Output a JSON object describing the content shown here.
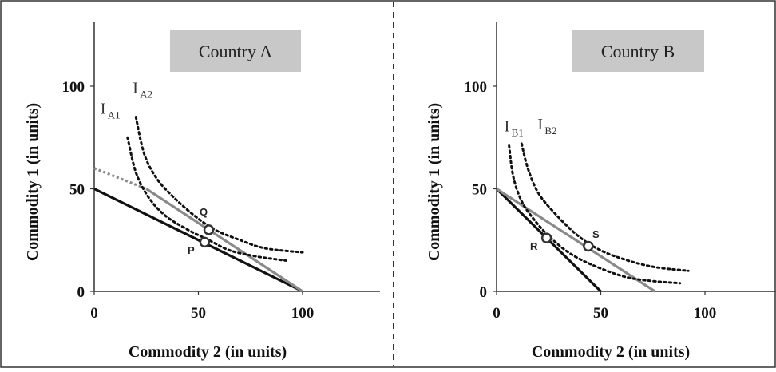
{
  "chart_data": [
    {
      "type": "line",
      "title": "Country A",
      "xlabel": "Commodity 2 (in units)",
      "ylabel": "Commodity 1 (in units)",
      "xlim": [
        0,
        136
      ],
      "ylim": [
        0,
        130
      ],
      "xticks": [
        "0",
        "50",
        "100"
      ],
      "yticks": [
        "0",
        "50",
        "100"
      ],
      "series": [
        {
          "style": "solid-black",
          "points": [
            [
              0,
              50
            ],
            [
              100,
              0
            ]
          ]
        },
        {
          "style": "dotted-gray",
          "points": [
            [
              0,
              60
            ],
            [
              25,
              50
            ]
          ]
        },
        {
          "style": "solid-gray",
          "points": [
            [
              25,
              50
            ],
            [
              100,
              0
            ]
          ]
        }
      ],
      "indifference_curves": [
        {
          "label": "I",
          "subscript": "A1",
          "points": [
            [
              16,
              75
            ],
            [
              20,
              58
            ],
            [
              26,
              46
            ],
            [
              34,
              37
            ],
            [
              45,
              30
            ],
            [
              55,
              25
            ],
            [
              65,
              20
            ],
            [
              78,
              17
            ],
            [
              92,
              15
            ]
          ]
        },
        {
          "label": "I",
          "subscript": "A2",
          "points": [
            [
              20,
              85
            ],
            [
              24,
              67
            ],
            [
              30,
              55
            ],
            [
              38,
              46
            ],
            [
              48,
              37
            ],
            [
              58,
              30
            ],
            [
              70,
              25
            ],
            [
              82,
              21
            ],
            [
              100,
              19
            ]
          ]
        }
      ],
      "points": [
        {
          "label": "Q",
          "x": 55,
          "y": 30
        },
        {
          "label": "P",
          "x": 53,
          "y": 24
        }
      ]
    },
    {
      "type": "line",
      "title": "Country B",
      "xlabel": "Commodity 2 (in units)",
      "ylabel": "Commodity 1 (in units)",
      "xlim": [
        0,
        136
      ],
      "ylim": [
        0,
        130
      ],
      "xticks": [
        "0",
        "50",
        "100"
      ],
      "yticks": [
        "0",
        "50",
        "100"
      ],
      "series": [
        {
          "style": "solid-black",
          "points": [
            [
              0,
              50
            ],
            [
              50,
              0
            ]
          ]
        },
        {
          "style": "solid-gray",
          "points": [
            [
              0,
              50
            ],
            [
              76,
              0
            ]
          ]
        }
      ],
      "indifference_curves": [
        {
          "label": "I",
          "subscript": "B1",
          "points": [
            [
              6,
              71
            ],
            [
              8,
              56
            ],
            [
              12,
              44
            ],
            [
              18,
              35
            ],
            [
              26,
              26
            ],
            [
              36,
              18
            ],
            [
              48,
              12
            ],
            [
              62,
              7
            ],
            [
              75,
              5
            ],
            [
              88,
              4
            ]
          ]
        },
        {
          "label": "I",
          "subscript": "B2",
          "points": [
            [
              12,
              72
            ],
            [
              15,
              60
            ],
            [
              20,
              48
            ],
            [
              28,
              38
            ],
            [
              38,
              28
            ],
            [
              48,
              21
            ],
            [
              60,
              16
            ],
            [
              75,
              12
            ],
            [
              92,
              10
            ]
          ]
        }
      ],
      "points": [
        {
          "label": "S",
          "x": 44,
          "y": 22
        },
        {
          "label": "R",
          "x": 24,
          "y": 26
        }
      ]
    }
  ]
}
